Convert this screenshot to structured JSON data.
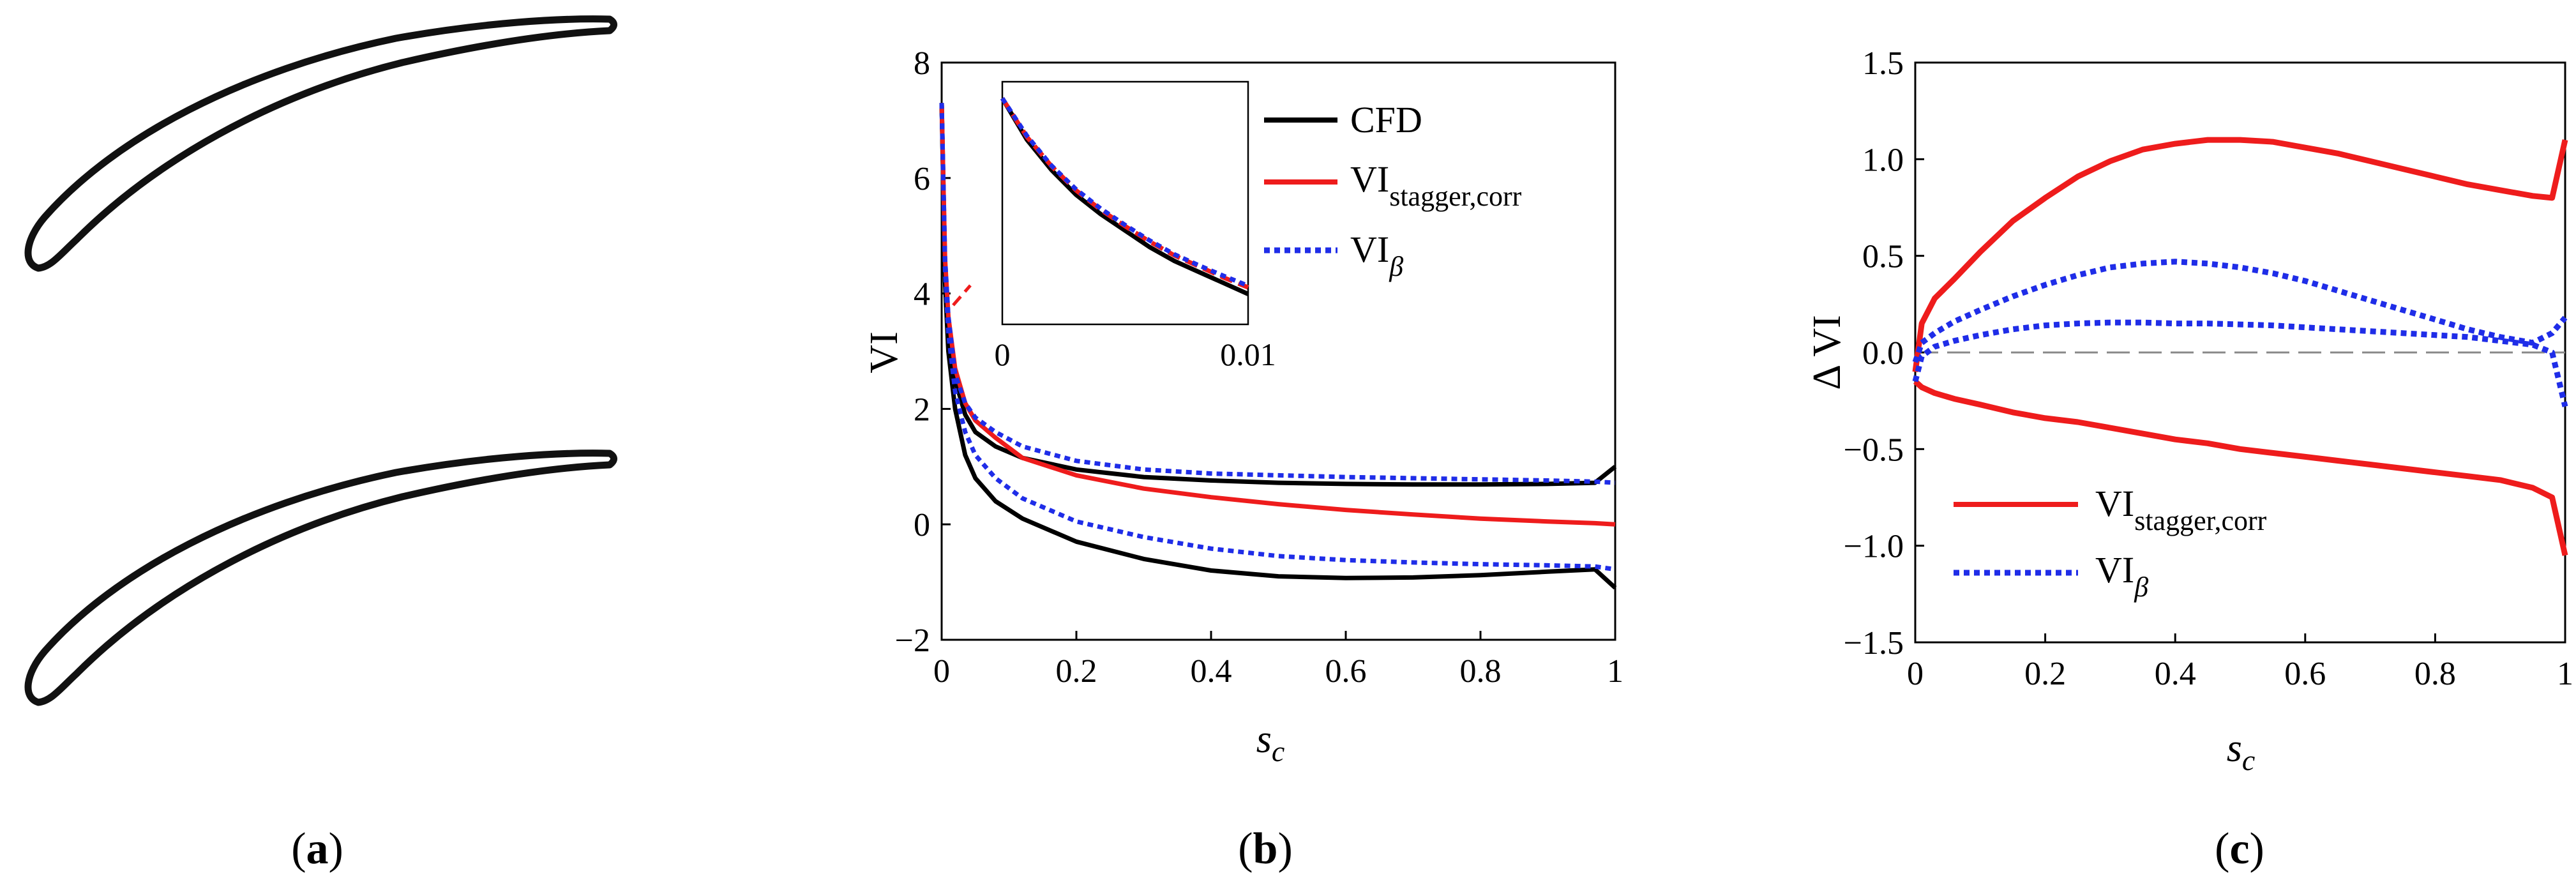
{
  "figure": {
    "labels": {
      "a": {
        "open": "(",
        "letter": "a",
        "close": ")"
      },
      "b": {
        "open": "(",
        "letter": "b",
        "close": ")"
      },
      "c": {
        "open": "(",
        "letter": "c",
        "close": ")"
      }
    }
  },
  "chart_data": [
    {
      "panel": "a",
      "type": "diagram",
      "title": "",
      "description_items": [
        "blade profile (upper)",
        "blade profile (lower)"
      ]
    },
    {
      "panel": "b",
      "type": "line",
      "xlabel": "s",
      "xlabel_sub": "c",
      "ylabel": "VI",
      "xlim": [
        0,
        1
      ],
      "ylim": [
        -2,
        8
      ],
      "xticks": [
        "0",
        "0.2",
        "0.4",
        "0.6",
        "0.8",
        "1"
      ],
      "xtick_values": [
        0,
        0.2,
        0.4,
        0.6,
        0.8,
        1
      ],
      "yticks": [
        "−2",
        "0",
        "2",
        "4",
        "6",
        "8"
      ],
      "ytick_values": [
        -2,
        0,
        2,
        4,
        6,
        8
      ],
      "x": [
        0,
        0.005,
        0.01,
        0.02,
        0.035,
        0.05,
        0.08,
        0.12,
        0.2,
        0.3,
        0.4,
        0.5,
        0.6,
        0.7,
        0.8,
        0.9,
        0.97,
        1.0
      ],
      "series": [
        {
          "name": "CFD",
          "name_sub": "",
          "color": "#000000",
          "dash": "solid",
          "values_upper": [
            7.3,
            4.5,
            3.4,
            2.5,
            1.9,
            1.6,
            1.35,
            1.15,
            0.95,
            0.82,
            0.76,
            0.72,
            0.7,
            0.69,
            0.69,
            0.7,
            0.72,
            1.0
          ],
          "values_lower": [
            7.3,
            4.2,
            3.0,
            2.0,
            1.2,
            0.8,
            0.4,
            0.1,
            -0.3,
            -0.6,
            -0.8,
            -0.9,
            -0.93,
            -0.92,
            -0.88,
            -0.82,
            -0.78,
            -1.1
          ]
        },
        {
          "name": "VI",
          "name_sub": "stagger,corr",
          "color": "#ee1c1c",
          "dash": "solid",
          "values": [
            7.3,
            4.6,
            3.6,
            2.7,
            2.1,
            1.8,
            1.5,
            1.15,
            0.85,
            0.62,
            0.47,
            0.35,
            0.25,
            0.17,
            0.1,
            0.05,
            0.02,
            0.0
          ]
        },
        {
          "name": "VI",
          "name_sub": "β",
          "color": "#1f2de8",
          "dash": "dotted",
          "values_upper": [
            7.3,
            4.6,
            3.6,
            2.6,
            2.1,
            1.85,
            1.6,
            1.35,
            1.1,
            0.95,
            0.88,
            0.85,
            0.82,
            0.8,
            0.78,
            0.76,
            0.74,
            0.72
          ],
          "values_lower": [
            7.3,
            4.4,
            3.3,
            2.3,
            1.6,
            1.2,
            0.8,
            0.45,
            0.05,
            -0.22,
            -0.42,
            -0.55,
            -0.62,
            -0.66,
            -0.69,
            -0.71,
            -0.73,
            -0.78
          ]
        }
      ],
      "inset": {
        "xlim": [
          0,
          0.01
        ],
        "xticks": [
          "0",
          "0.01"
        ],
        "x": [
          0,
          0.001,
          0.002,
          0.003,
          0.004,
          0.005,
          0.006,
          0.007,
          0.008,
          0.009,
          0.01
        ],
        "series": [
          {
            "name": "CFD",
            "color": "#000000",
            "dash": "solid",
            "values": [
              7.3,
              6.55,
              6.0,
              5.55,
              5.2,
              4.9,
              4.6,
              4.35,
              4.15,
              3.95,
              3.75
            ]
          },
          {
            "name": "VI stagger,corr",
            "color": "#ee1c1c",
            "dash": "dashed",
            "values": [
              7.3,
              6.6,
              6.07,
              5.63,
              5.28,
              4.98,
              4.7,
              4.45,
              4.25,
              4.05,
              3.87
            ]
          },
          {
            "name": "VI beta",
            "color": "#1f2de8",
            "dash": "dotted",
            "values": [
              7.3,
              6.62,
              6.08,
              5.65,
              5.3,
              5.0,
              4.72,
              4.47,
              4.27,
              4.08,
              3.9
            ]
          }
        ]
      }
    },
    {
      "panel": "c",
      "type": "line",
      "xlabel": "s",
      "xlabel_sub": "c",
      "ylabel": "Δ VI",
      "xlim": [
        0,
        1
      ],
      "ylim": [
        -1.5,
        1.5
      ],
      "xticks": [
        "0",
        "0.2",
        "0.4",
        "0.6",
        "0.8",
        "1"
      ],
      "xtick_values": [
        0,
        0.2,
        0.4,
        0.6,
        0.8,
        1
      ],
      "yticks": [
        "−1.5",
        "−1.0",
        "−0.5",
        "0.0",
        "0.5",
        "1.0",
        "1.5"
      ],
      "ytick_values": [
        -1.5,
        -1.0,
        -0.5,
        0.0,
        0.5,
        1.0,
        1.5
      ],
      "zero_line": true,
      "x": [
        0,
        0.01,
        0.03,
        0.06,
        0.1,
        0.15,
        0.2,
        0.25,
        0.3,
        0.35,
        0.4,
        0.45,
        0.5,
        0.55,
        0.6,
        0.65,
        0.7,
        0.75,
        0.8,
        0.85,
        0.9,
        0.95,
        0.98,
        1.0
      ],
      "series": [
        {
          "name": "VI",
          "name_sub": "stagger,corr",
          "color": "#ee1c1c",
          "dash": "solid",
          "values_upper": [
            -0.1,
            0.15,
            0.28,
            0.38,
            0.52,
            0.68,
            0.8,
            0.91,
            0.99,
            1.05,
            1.08,
            1.1,
            1.1,
            1.09,
            1.06,
            1.03,
            0.99,
            0.95,
            0.91,
            0.87,
            0.84,
            0.81,
            0.8,
            1.1
          ],
          "values_lower": [
            -0.15,
            -0.18,
            -0.21,
            -0.24,
            -0.27,
            -0.31,
            -0.34,
            -0.36,
            -0.39,
            -0.42,
            -0.45,
            -0.47,
            -0.5,
            -0.52,
            -0.54,
            -0.56,
            -0.58,
            -0.6,
            -0.62,
            -0.64,
            -0.66,
            -0.7,
            -0.75,
            -1.05
          ]
        },
        {
          "name": "VI",
          "name_sub": "β",
          "color": "#1f2de8",
          "dash": "dotted",
          "values_upper": [
            -0.05,
            0.05,
            0.1,
            0.16,
            0.22,
            0.29,
            0.35,
            0.4,
            0.44,
            0.46,
            0.47,
            0.46,
            0.44,
            0.41,
            0.37,
            0.32,
            0.27,
            0.22,
            0.17,
            0.12,
            0.08,
            0.05,
            0.1,
            0.18
          ],
          "values_lower": [
            -0.15,
            -0.02,
            0.03,
            0.06,
            0.09,
            0.12,
            0.14,
            0.15,
            0.155,
            0.155,
            0.15,
            0.15,
            0.145,
            0.14,
            0.13,
            0.12,
            0.11,
            0.1,
            0.09,
            0.08,
            0.06,
            0.04,
            0.0,
            -0.28
          ]
        }
      ]
    }
  ]
}
